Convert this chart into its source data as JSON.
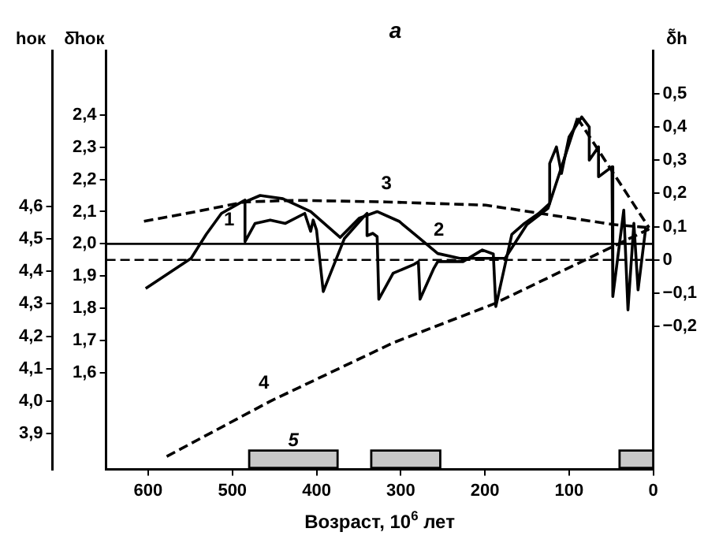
{
  "chart_data": {
    "type": "line",
    "title": "а",
    "xlabel": "Возраст, 10$^{6}$ лет",
    "ylabel": "hок",
    "y3label": "δ̄hок",
    "y2label": "δ̃h",
    "xlim": [
      650,
      0
    ],
    "xticks": [
      600,
      500,
      400,
      300,
      200,
      100,
      0
    ],
    "ylim": [
      3.79,
      5.08
    ],
    "yticks": [
      {
        "value": 3.9,
        "label": "3,9"
      },
      {
        "value": 4.0,
        "label": "4,0"
      },
      {
        "value": 4.1,
        "label": "4,1"
      },
      {
        "value": 4.2,
        "label": "4,2"
      },
      {
        "value": 4.3,
        "label": "4,3"
      },
      {
        "value": 4.4,
        "label": "4,4"
      },
      {
        "value": 4.5,
        "label": "4,5"
      },
      {
        "value": 4.6,
        "label": "4,6"
      }
    ],
    "y3lim": [
      1.3,
      2.6
    ],
    "y3ticks": [
      {
        "value": 1.6,
        "label": "1,6"
      },
      {
        "value": 1.7,
        "label": "1,7"
      },
      {
        "value": 1.8,
        "label": "1,8"
      },
      {
        "value": 1.9,
        "label": "1,9"
      },
      {
        "value": 2.0,
        "label": "2,0"
      },
      {
        "value": 2.1,
        "label": "2,1"
      },
      {
        "value": 2.2,
        "label": "2,2"
      },
      {
        "value": 2.3,
        "label": "2,3"
      },
      {
        "value": 2.4,
        "label": "2,4"
      }
    ],
    "y2lim": [
      -0.63,
      0.63
    ],
    "y2ticks": [
      {
        "value": -0.2,
        "label": "−0,2"
      },
      {
        "value": -0.1,
        "label": "−0,1"
      },
      0,
      {
        "value": 0.1,
        "label": "0,1"
      },
      {
        "value": 0.2,
        "label": "0,2"
      },
      {
        "value": 0.3,
        "label": "0,3"
      },
      {
        "value": 0.4,
        "label": "0,4"
      },
      {
        "value": 0.5,
        "label": "0,5"
      }
    ],
    "grid": false,
    "marker": "none",
    "series": [
      {
        "name": "1",
        "axis": "y2",
        "color": "#000000",
        "line_style": "solid",
        "x": [
          603,
          549,
          531,
          513,
          485,
          485,
          473,
          455,
          437,
          414,
          407,
          404,
          400,
          392,
          367,
          344,
          340,
          340,
          333,
          328,
          326,
          309,
          284,
          279,
          277,
          261,
          256,
          226,
          203,
          190,
          187,
          168,
          153,
          136,
          123,
          123,
          115,
          109,
          100,
          85,
          76,
          76,
          65,
          65,
          49,
          48,
          35,
          30,
          23,
          18,
          9,
          5
        ],
        "values": [
          -0.086,
          0.005,
          0.077,
          0.14,
          0.18,
          0.055,
          0.11,
          0.12,
          0.11,
          0.14,
          0.086,
          0.12,
          0.09,
          -0.095,
          0.064,
          0.13,
          0.14,
          0.073,
          0.08,
          0.07,
          -0.118,
          -0.04,
          -0.013,
          -0.005,
          -0.118,
          -0.027,
          -0.005,
          -0.005,
          0.03,
          0.018,
          -0.14,
          0.077,
          0.11,
          0.14,
          0.17,
          0.29,
          0.34,
          0.26,
          0.37,
          0.43,
          0.4,
          0.3,
          0.34,
          0.25,
          0.28,
          -0.11,
          0.15,
          -0.15,
          0.11,
          -0.09,
          0.095,
          0.09
        ]
      },
      {
        "name": "2",
        "axis": "y3",
        "color": "#000000",
        "line_style": "solid",
        "x": [
          485,
          467,
          440,
          407,
          372,
          349,
          328,
          302,
          279,
          256,
          230,
          200,
          176,
          150,
          125,
          90
        ],
        "values": [
          2.13,
          2.15,
          2.14,
          2.1,
          2.02,
          2.08,
          2.1,
          2.07,
          2.02,
          1.97,
          1.955,
          1.955,
          1.955,
          2.06,
          2.11,
          2.39
        ]
      },
      {
        "axis": "y3",
        "color": "#000000",
        "line_style": "dashed",
        "x": [
          90,
          5
        ],
        "values": [
          2.39,
          2.05
        ]
      },
      {
        "name": "3",
        "axis": "y3",
        "color": "#000000",
        "line_style": "dashed",
        "x": [
          605,
          543,
          485,
          425,
          317,
          199,
          123,
          48,
          5
        ],
        "values": [
          2.07,
          2.1,
          2.13,
          2.135,
          2.13,
          2.12,
          2.09,
          2.06,
          2.05
        ]
      },
      {
        "name": "4",
        "axis": "y",
        "color": "#000000",
        "line_style": "dashed",
        "x": [
          578,
          455,
          309,
          189,
          5
        ],
        "values": [
          3.83,
          4.0,
          4.18,
          4.3,
          4.53
        ]
      }
    ],
    "ref_lines": [
      {
        "axis": "y3",
        "value": 2.0,
        "line_style": "solid"
      },
      {
        "axis": "y2",
        "value": 0,
        "line_style": "dashed"
      }
    ],
    "bands": [
      {
        "axis": "x",
        "from": 480,
        "to": 375,
        "label": "5",
        "color": "#c8c8c8"
      },
      {
        "axis": "x",
        "from": 335,
        "to": 253,
        "color": "#c8c8c8"
      },
      {
        "axis": "x",
        "from": 40,
        "to": 0,
        "color": "#c8c8c8"
      }
    ]
  }
}
